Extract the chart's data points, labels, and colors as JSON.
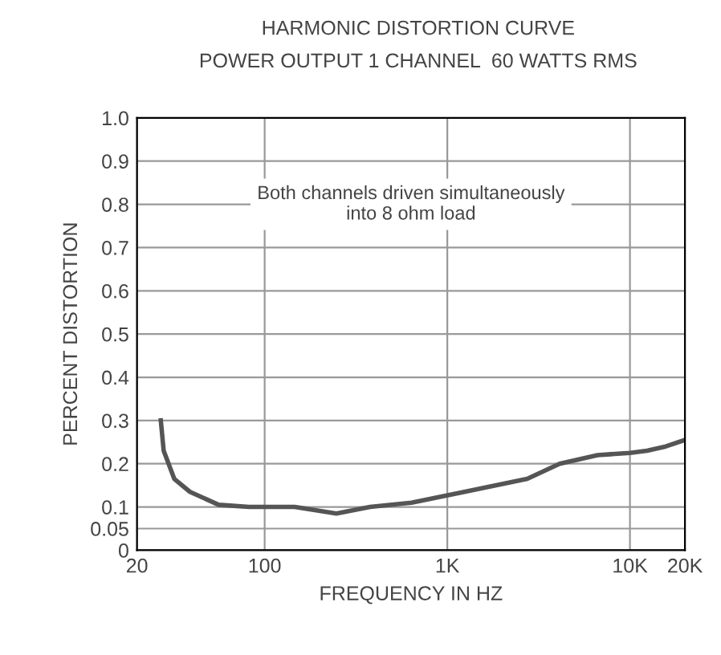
{
  "chart_data": {
    "type": "line",
    "title": "HARMONIC DISTORTION CURVE",
    "subtitle": "POWER OUTPUT 1 CHANNEL  60 WATTS RMS",
    "xlabel": "FREQUENCY IN HZ",
    "ylabel": "PERCENT DISTORTION",
    "annotations": [
      "Both channels driven simultaneously\ninto 8 ohm load"
    ],
    "x": [
      27,
      28,
      32,
      39,
      56,
      82,
      146,
      247,
      378,
      637,
      1240,
      2740,
      4120,
      6650,
      10000,
      12400,
      15700,
      20000
    ],
    "series": [
      {
        "color": "#555555",
        "values": [
          0.3,
          0.23,
          0.165,
          0.135,
          0.105,
          0.1,
          0.1,
          0.085,
          0.1,
          0.11,
          0.135,
          0.165,
          0.2,
          0.22,
          0.225,
          0.23,
          0.24,
          0.255
        ]
      }
    ],
    "log": "x",
    "xlim": [
      20,
      20000
    ],
    "xticks": [
      20,
      100,
      {
        "value": 1000,
        "label": "1K"
      },
      {
        "value": 10000,
        "label": "10K"
      },
      {
        "value": 20000,
        "label": "20K"
      }
    ],
    "ylim": [
      0,
      1.0
    ],
    "yticks": [
      0,
      0.05,
      0.1,
      0.2,
      0.3,
      0.4,
      0.5,
      0.6,
      0.7,
      0.8,
      0.9,
      {
        "value": 1.0,
        "label": "1.0"
      }
    ],
    "grid": true,
    "marker": "none",
    "line_style": "solid"
  }
}
